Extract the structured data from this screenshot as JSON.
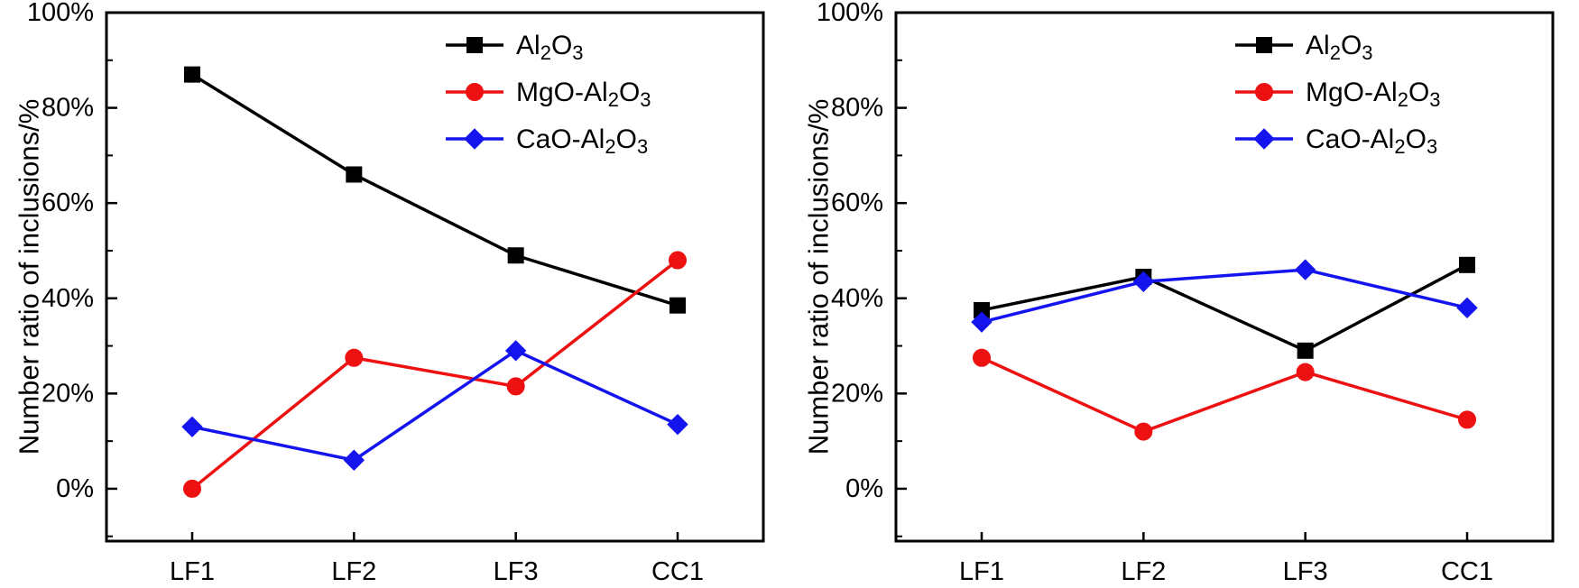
{
  "figure": {
    "background": "#ffffff"
  },
  "chart_data": [
    {
      "type": "line",
      "panel": "left",
      "title": "",
      "xlabel": "",
      "ylabel": "Number ratio of inclusions/%",
      "categories": [
        "LF1",
        "LF2",
        "LF3",
        "CC1"
      ],
      "ylim": [
        -11,
        100
      ],
      "yticks": [
        0,
        20,
        40,
        60,
        80,
        100
      ],
      "ytick_labels": [
        "0%",
        "20%",
        "40%",
        "60%",
        "80%",
        "100%"
      ],
      "minor_ytick_step": 10,
      "grid": false,
      "legend_position": "top-right",
      "series": [
        {
          "name": "Al2O3",
          "marker": "square",
          "color": "#000000",
          "values": [
            87,
            66,
            49,
            38.5
          ]
        },
        {
          "name": "MgO-Al2O3",
          "marker": "circle",
          "color": "#ee1111",
          "values": [
            0,
            27.5,
            21.5,
            48
          ]
        },
        {
          "name": "CaO-Al2O3",
          "marker": "diamond",
          "color": "#1414ee",
          "values": [
            13,
            6,
            29,
            13.5
          ]
        }
      ]
    },
    {
      "type": "line",
      "panel": "right",
      "title": "",
      "xlabel": "",
      "ylabel": "Number ratio of inclusions/%",
      "categories": [
        "LF1",
        "LF2",
        "LF3",
        "CC1"
      ],
      "ylim": [
        -11,
        100
      ],
      "yticks": [
        0,
        20,
        40,
        60,
        80,
        100
      ],
      "ytick_labels": [
        "0%",
        "20%",
        "40%",
        "60%",
        "80%",
        "100%"
      ],
      "minor_ytick_step": 10,
      "grid": false,
      "legend_position": "top-right",
      "series": [
        {
          "name": "Al2O3",
          "marker": "square",
          "color": "#000000",
          "values": [
            37.5,
            44.5,
            29,
            47
          ]
        },
        {
          "name": "MgO-Al2O3",
          "marker": "circle",
          "color": "#ee1111",
          "values": [
            27.5,
            12,
            24.5,
            14.5
          ]
        },
        {
          "name": "CaO-Al2O3",
          "marker": "diamond",
          "color": "#1414ee",
          "values": [
            35,
            43.5,
            46,
            38
          ]
        }
      ]
    }
  ]
}
